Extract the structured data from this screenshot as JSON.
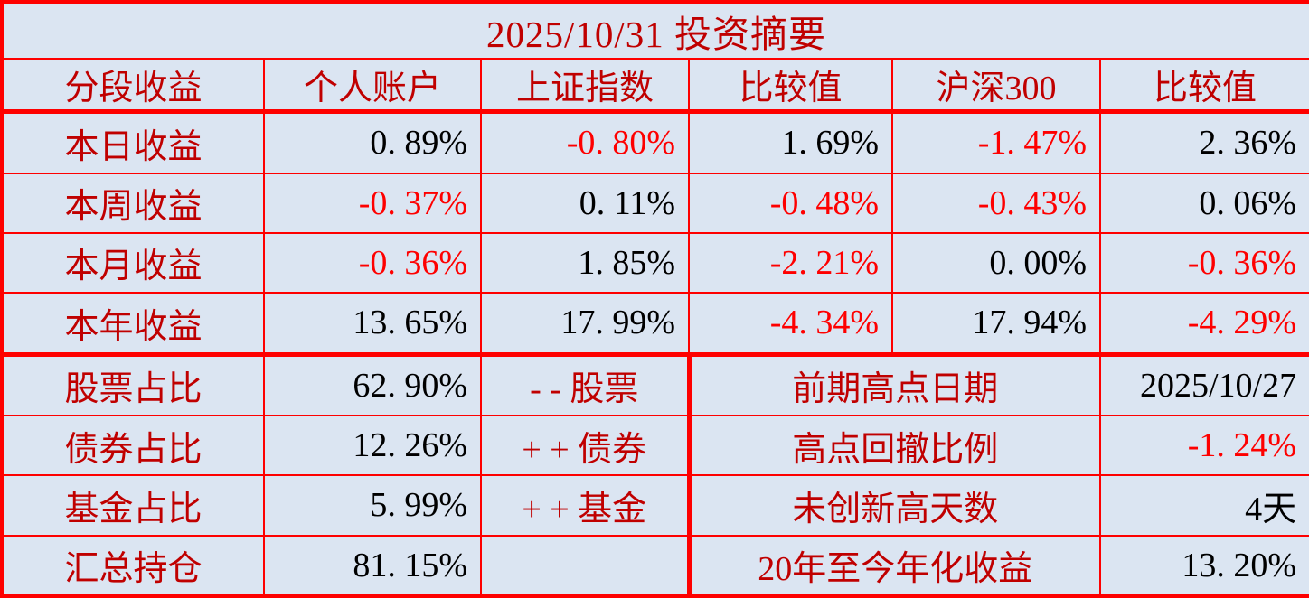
{
  "colors": {
    "bg": "#dbe5f2",
    "border": "#fe0000",
    "label": "#c00000",
    "neg": "#fe0000",
    "text": "#000000"
  },
  "title": "2025/10/31 投资摘要",
  "header": [
    "分段收益",
    "个人账户",
    "上证指数",
    "比较值",
    "沪深300",
    "比较值"
  ],
  "returns": [
    {
      "label": "本日收益",
      "cells": [
        {
          "t": "0. 89%",
          "c": "pos"
        },
        {
          "t": "-0. 80%",
          "c": "neg"
        },
        {
          "t": "1. 69%",
          "c": "pos"
        },
        {
          "t": "-1. 47%",
          "c": "neg"
        },
        {
          "t": "2. 36%",
          "c": "pos"
        }
      ]
    },
    {
      "label": "本周收益",
      "cells": [
        {
          "t": "-0. 37%",
          "c": "neg"
        },
        {
          "t": "0. 11%",
          "c": "pos"
        },
        {
          "t": "-0. 48%",
          "c": "neg"
        },
        {
          "t": "-0. 43%",
          "c": "neg"
        },
        {
          "t": "0. 06%",
          "c": "pos"
        }
      ]
    },
    {
      "label": "本月收益",
      "cells": [
        {
          "t": "-0. 36%",
          "c": "neg"
        },
        {
          "t": "1. 85%",
          "c": "pos"
        },
        {
          "t": "-2. 21%",
          "c": "neg"
        },
        {
          "t": "0. 00%",
          "c": "pos"
        },
        {
          "t": "-0. 36%",
          "c": "neg"
        }
      ]
    },
    {
      "label": "本年收益",
      "cells": [
        {
          "t": "13. 65%",
          "c": "pos"
        },
        {
          "t": "17. 99%",
          "c": "pos"
        },
        {
          "t": "-4. 34%",
          "c": "neg"
        },
        {
          "t": "17. 94%",
          "c": "pos"
        },
        {
          "t": "-4. 29%",
          "c": "neg"
        }
      ]
    }
  ],
  "portfolio": [
    {
      "label": "股票占比",
      "value": {
        "t": "62. 90%",
        "c": "pos"
      },
      "note": "- - 股票"
    },
    {
      "label": "债券占比",
      "value": {
        "t": "12. 26%",
        "c": "pos"
      },
      "note": "+ + 债券"
    },
    {
      "label": "基金占比",
      "value": {
        "t": "5. 99%",
        "c": "pos"
      },
      "note": "+ + 基金"
    },
    {
      "label": "汇总持仓",
      "value": {
        "t": "81. 15%",
        "c": "pos"
      },
      "note": ""
    }
  ],
  "stats": [
    {
      "label": "前期高点日期",
      "value": {
        "t": "2025/10/27",
        "c": "pos"
      }
    },
    {
      "label": "高点回撤比例",
      "value": {
        "t": "-1. 24%",
        "c": "neg"
      }
    },
    {
      "label": "未创新高天数",
      "value": {
        "t": "4天",
        "c": "pos"
      }
    },
    {
      "label": "20年至今年化收益",
      "value": {
        "t": "13. 20%",
        "c": "pos"
      }
    }
  ],
  "chart_data": {
    "type": "table",
    "title": "2025/10/31 投资摘要",
    "columns": [
      "分段收益",
      "个人账户",
      "上证指数",
      "比较值",
      "沪深300",
      "比较值"
    ],
    "rows": [
      [
        "本日收益",
        "0.89%",
        "-0.80%",
        "1.69%",
        "-1.47%",
        "2.36%"
      ],
      [
        "本周收益",
        "-0.37%",
        "0.11%",
        "-0.48%",
        "-0.43%",
        "0.06%"
      ],
      [
        "本月收益",
        "-0.36%",
        "1.85%",
        "-2.21%",
        "0.00%",
        "-0.36%"
      ],
      [
        "本年收益",
        "13.65%",
        "17.99%",
        "-4.34%",
        "17.94%",
        "-4.29%"
      ]
    ],
    "allocation": [
      [
        "股票占比",
        "62.90%"
      ],
      [
        "债券占比",
        "12.26%"
      ],
      [
        "基金占比",
        "5.99%"
      ],
      [
        "汇总持仓",
        "81.15%"
      ]
    ],
    "stats": [
      [
        "前期高点日期",
        "2025/10/27"
      ],
      [
        "高点回撤比例",
        "-1.24%"
      ],
      [
        "未创新高天数",
        "4天"
      ],
      [
        "20年至今年化收益",
        "13.20%"
      ]
    ]
  }
}
